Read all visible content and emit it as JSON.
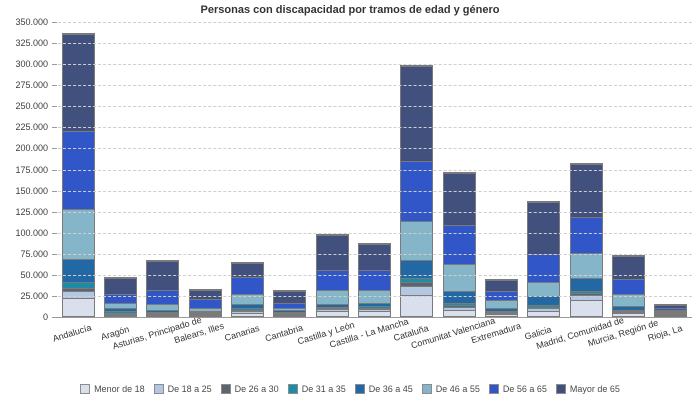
{
  "title": "Personas con discapacidad por tramos de edad y género",
  "chart_data": {
    "type": "bar",
    "stacked": true,
    "title": "Personas con discapacidad por tramos de edad y género",
    "xlabel": "",
    "ylabel": "",
    "ylim": [
      0,
      350000
    ],
    "ytick_step": 25000,
    "ytick_labels": [
      "0",
      "25.000",
      "50.000",
      "75.000",
      "100.000",
      "125.000",
      "150.000",
      "175.000",
      "200.000",
      "225.000",
      "250.000",
      "275.000",
      "300.000",
      "325.000",
      "350.000"
    ],
    "grid": "horizontal-dashed",
    "legend_position": "bottom",
    "categories": [
      "Andalucía",
      "Aragón",
      "Asturias, Principado de",
      "Balears, Illes",
      "Canarias",
      "Cantabria",
      "Castilla y León",
      "Castilla - La Mancha",
      "Cataluña",
      "Comunitat Valenciana",
      "Extremadura",
      "Galicia",
      "Madrid, Comunidad de",
      "Murcia, Región de",
      "Rioja, La"
    ],
    "series": [
      {
        "name": "Menor de 18",
        "color": "#dadfee",
        "values": [
          21000,
          1500,
          1500,
          1100,
          4000,
          1200,
          6000,
          6000,
          25000,
          7000,
          2000,
          6000,
          19000,
          3500,
          600
        ]
      },
      {
        "name": "De 18 a 25",
        "color": "#b4c7e2",
        "values": [
          8500,
          1500,
          1200,
          800,
          2000,
          700,
          1800,
          2000,
          11000,
          4000,
          1000,
          3000,
          6000,
          1500,
          400
        ]
      },
      {
        "name": "De 26 a 30",
        "color": "#5c6670",
        "values": [
          4300,
          1000,
          1000,
          500,
          1200,
          500,
          1200,
          1200,
          4000,
          2000,
          800,
          1500,
          1800,
          1000,
          300
        ]
      },
      {
        "name": "De 31 a 35",
        "color": "#1d8ca8",
        "values": [
          6500,
          1500,
          1000,
          600,
          1800,
          700,
          2000,
          2300,
          5000,
          3000,
          1000,
          2500,
          2500,
          1500,
          400
        ]
      },
      {
        "name": "De 36 a 45",
        "color": "#2268a5",
        "values": [
          27700,
          3500,
          2500,
          1500,
          5000,
          1900,
          3000,
          4500,
          21000,
          13500,
          4200,
          11000,
          16000,
          4800,
          1100
        ]
      },
      {
        "name": "De 46 a 55",
        "color": "#85b5c8",
        "values": [
          59000,
          6500,
          7000,
          3500,
          12500,
          3000,
          17000,
          15000,
          47000,
          32000,
          9000,
          16000,
          30000,
          14200,
          1500
        ]
      },
      {
        "name": "De 56 a 65",
        "color": "#3156c7",
        "values": [
          92000,
          10500,
          16000,
          10000,
          19500,
          6000,
          24000,
          24000,
          71000,
          47000,
          11000,
          33500,
          42500,
          17000,
          2300
        ]
      },
      {
        "name": "Mayor de 65",
        "color": "#42507e",
        "values": [
          116000,
          19000,
          35000,
          11500,
          17000,
          14000,
          41000,
          30000,
          113000,
          61500,
          13000,
          62000,
          62200,
          27500,
          3400
        ]
      }
    ]
  }
}
